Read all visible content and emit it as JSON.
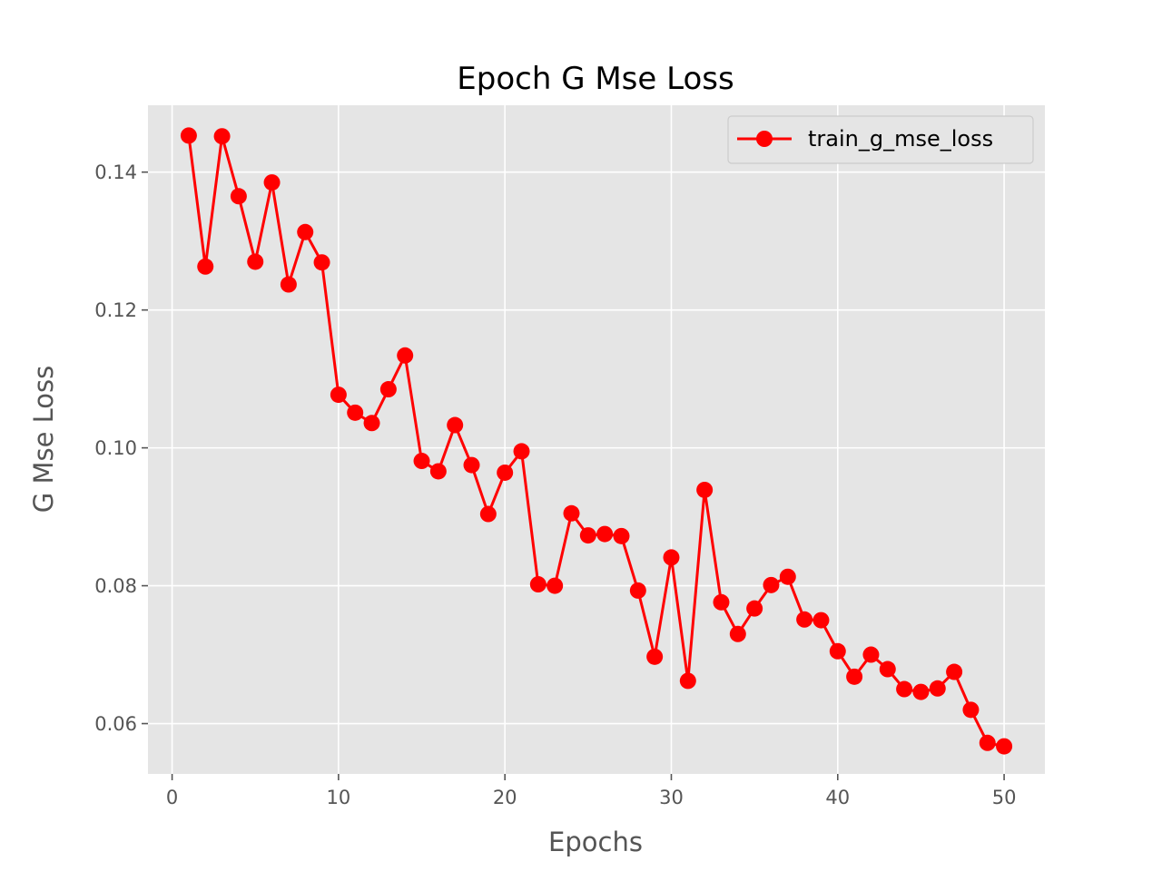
{
  "chart_data": {
    "type": "line",
    "title": "Epoch G Mse Loss",
    "xlabel": "Epochs",
    "ylabel": "G Mse Loss",
    "xlim": [
      -1.45,
      52.45
    ],
    "ylim": [
      0.0527,
      0.1497
    ],
    "xticks": [
      0,
      10,
      20,
      30,
      40,
      50
    ],
    "xtick_labels": [
      "0",
      "10",
      "20",
      "30",
      "40",
      "50"
    ],
    "yticks": [
      0.06,
      0.08,
      0.1,
      0.12,
      0.14
    ],
    "ytick_labels": [
      "0.06",
      "0.08",
      "0.10",
      "0.12",
      "0.14"
    ],
    "grid": true,
    "legend_position": "top-right",
    "series": [
      {
        "name": "train_g_mse_loss",
        "color": "#ff0000",
        "marker": "circle",
        "x": [
          1,
          2,
          3,
          4,
          5,
          6,
          7,
          8,
          9,
          10,
          11,
          12,
          13,
          14,
          15,
          16,
          17,
          18,
          19,
          20,
          21,
          22,
          23,
          24,
          25,
          26,
          27,
          28,
          29,
          30,
          31,
          32,
          33,
          34,
          35,
          36,
          37,
          38,
          39,
          40,
          41,
          42,
          43,
          44,
          45,
          46,
          47,
          48,
          49,
          50
        ],
        "y": [
          0.1453,
          0.1263,
          0.1452,
          0.1365,
          0.127,
          0.1385,
          0.1237,
          0.1313,
          0.1269,
          0.1077,
          0.1051,
          0.1036,
          0.1085,
          0.1134,
          0.0981,
          0.0966,
          0.1033,
          0.0975,
          0.0904,
          0.0964,
          0.0995,
          0.0802,
          0.08,
          0.0905,
          0.0873,
          0.0875,
          0.0872,
          0.0793,
          0.0697,
          0.0841,
          0.0662,
          0.0939,
          0.0776,
          0.073,
          0.0767,
          0.0801,
          0.0813,
          0.0751,
          0.075,
          0.0705,
          0.0668,
          0.07,
          0.0679,
          0.065,
          0.0646,
          0.0651,
          0.0675,
          0.062,
          0.0572,
          0.0567
        ]
      }
    ]
  }
}
